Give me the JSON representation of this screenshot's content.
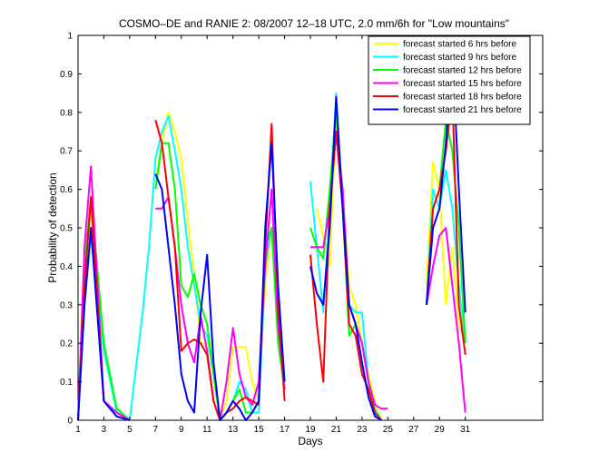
{
  "chart_data": {
    "type": "line",
    "title": "COSMO–DE and RANIE 2: 08/2007 12–18 UTC, 2.0 mm/6h for \"Low mountains\"",
    "xlabel": "Days",
    "ylabel": "Probability of detection",
    "xlim": [
      1,
      37
    ],
    "ylim": [
      0,
      1
    ],
    "x_ticks": [
      1,
      3,
      5,
      7,
      9,
      11,
      13,
      15,
      17,
      19,
      21,
      23,
      25,
      27,
      29,
      31
    ],
    "y_ticks": [
      0,
      0.1,
      0.2,
      0.3,
      0.4,
      0.5,
      0.6,
      0.7,
      0.8,
      0.9,
      1
    ],
    "y_tick_labels": [
      "0",
      "0.1",
      "0.2",
      "0.3",
      "0.4",
      "0.5",
      "0.6",
      "0.7",
      "0.8",
      "0.9",
      "1"
    ],
    "grid": false,
    "legend_position": "top-right",
    "x": [
      1,
      1.5,
      2,
      3,
      4,
      5,
      6,
      6.5,
      7,
      7.5,
      8,
      8.5,
      9,
      9.5,
      10,
      10.5,
      11,
      11.5,
      12,
      12.5,
      13,
      13.5,
      14,
      14.5,
      15,
      15.5,
      16,
      16.5,
      17,
      17.5,
      18,
      18.5,
      19,
      19.5,
      20,
      20.5,
      21,
      21.5,
      22,
      22.5,
      23,
      23.5,
      24,
      24.5,
      25,
      25.5,
      26,
      26.5,
      27,
      27.5,
      28,
      28.5,
      29,
      29.5,
      30,
      30.5,
      31
    ],
    "series": [
      {
        "name": "forecast started 6 hrs before",
        "color": "#ffff00",
        "values": [
          0,
          0.35,
          0.55,
          0.2,
          0.02,
          0,
          null,
          null,
          0.62,
          0.72,
          0.8,
          0.75,
          0.68,
          0.52,
          0.38,
          0.2,
          0.2,
          0.15,
          0,
          0.05,
          0.19,
          0.19,
          0.19,
          0.1,
          0.05,
          0.35,
          0.5,
          0.25,
          0.1,
          null,
          null,
          null,
          null,
          0.55,
          0.48,
          0.4,
          0.8,
          0.6,
          0.35,
          0.3,
          0.2,
          0.12,
          0.05,
          0,
          null,
          null,
          null,
          null,
          null,
          null,
          0.35,
          0.67,
          0.6,
          0.3,
          0.45,
          0.25,
          0.2
        ]
      },
      {
        "name": "forecast started 9 hrs before",
        "color": "#00ffff",
        "values": [
          0,
          0.3,
          0.48,
          0.18,
          0.02,
          0,
          0.28,
          0.45,
          0.68,
          0.75,
          0.79,
          0.7,
          0.6,
          0.45,
          0.35,
          0.25,
          0.22,
          0.12,
          0,
          0.02,
          0.05,
          0.1,
          0.08,
          0.02,
          0.02,
          0.4,
          0.5,
          0.3,
          0.1,
          null,
          null,
          null,
          0.62,
          0.45,
          0.28,
          0.55,
          0.85,
          0.55,
          0.3,
          0.28,
          0.28,
          0.1,
          0.03,
          0,
          null,
          null,
          null,
          null,
          null,
          null,
          0.3,
          0.6,
          0.55,
          0.65,
          0.55,
          0.35,
          0.2
        ]
      },
      {
        "name": "forecast started 12 hrs before",
        "color": "#00ff00",
        "values": [
          0,
          0.4,
          0.58,
          0.2,
          0.03,
          0,
          null,
          null,
          0.6,
          0.72,
          0.72,
          0.6,
          0.35,
          0.32,
          0.38,
          0.3,
          0.25,
          0.12,
          0,
          0.02,
          0.05,
          0.08,
          0.02,
          0.02,
          0.05,
          0.45,
          0.5,
          0.2,
          0.08,
          null,
          null,
          null,
          0.5,
          0.45,
          0.42,
          0.6,
          0.8,
          0.55,
          0.22,
          0.25,
          0.2,
          0.1,
          0.02,
          0,
          null,
          null,
          null,
          null,
          null,
          null,
          0.3,
          0.55,
          0.6,
          0.78,
          0.7,
          0.5,
          0.2
        ]
      },
      {
        "name": "forecast started 15 hrs before",
        "color": "#ff00ff",
        "values": [
          0,
          0.45,
          0.66,
          0.05,
          0.02,
          0,
          null,
          null,
          0.55,
          0.55,
          0.58,
          0.45,
          0.3,
          0.2,
          0.15,
          0.27,
          0.18,
          0.05,
          0,
          0.1,
          0.24,
          0.12,
          0.06,
          0.04,
          0.1,
          0.4,
          0.6,
          0.25,
          0.08,
          null,
          null,
          null,
          0.45,
          0.45,
          0.45,
          0.55,
          0.75,
          0.6,
          0.3,
          0.25,
          0.2,
          0.1,
          0.04,
          0.03,
          0.03,
          null,
          null,
          null,
          null,
          null,
          0.3,
          0.4,
          0.48,
          0.5,
          0.35,
          0.2,
          0.02
        ]
      },
      {
        "name": "forecast started 18 hrs before",
        "color": "#ff0000",
        "values": [
          0,
          0.35,
          0.58,
          0.05,
          0.01,
          0,
          null,
          null,
          0.78,
          0.72,
          0.58,
          0.45,
          0.18,
          0.2,
          0.21,
          0.2,
          0.17,
          0.05,
          0,
          0.02,
          0.03,
          0.05,
          0.06,
          0.05,
          0.04,
          0.45,
          0.77,
          0.3,
          0.05,
          null,
          null,
          null,
          0.43,
          0.25,
          0.1,
          0.55,
          0.75,
          0.55,
          0.25,
          0.22,
          0.12,
          0.08,
          0.02,
          0,
          null,
          null,
          null,
          null,
          null,
          null,
          0.3,
          0.55,
          0.6,
          0.7,
          0.85,
          0.3,
          0.17
        ]
      },
      {
        "name": "forecast started 21 hrs before",
        "color": "#0000ff",
        "values": [
          0,
          0.3,
          0.5,
          0.05,
          0.01,
          0,
          null,
          null,
          0.64,
          0.6,
          0.45,
          0.3,
          0.12,
          0.05,
          0.02,
          0.28,
          0.43,
          0.15,
          0,
          0.02,
          0.05,
          0.03,
          0,
          0.02,
          0.05,
          0.5,
          0.72,
          0.35,
          0.1,
          null,
          null,
          null,
          0.4,
          0.33,
          0.3,
          0.5,
          0.84,
          0.55,
          0.3,
          0.25,
          0.15,
          0.06,
          0.01,
          0,
          null,
          null,
          null,
          null,
          null,
          null,
          0.3,
          0.5,
          0.55,
          0.72,
          0.96,
          0.6,
          0.28
        ]
      }
    ]
  }
}
